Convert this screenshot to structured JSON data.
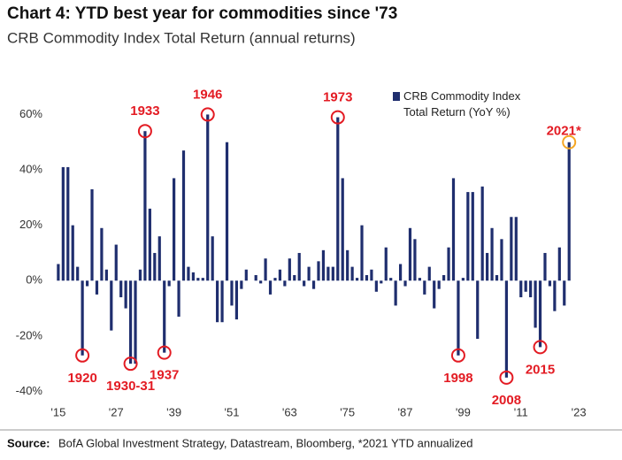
{
  "chart_data": {
    "type": "bar",
    "title": "Chart 4: YTD best year for commodities since '73",
    "subtitle": "CRB Commodity Index Total Return (annual returns)",
    "source_label": "Source:",
    "source": "BofA Global Investment Strategy, Datastream, Bloomberg, *2021 YTD annualized",
    "x": [
      1915,
      1916,
      1917,
      1918,
      1919,
      1920,
      1921,
      1922,
      1923,
      1924,
      1925,
      1926,
      1927,
      1928,
      1929,
      1930,
      1931,
      1932,
      1933,
      1934,
      1935,
      1936,
      1937,
      1938,
      1939,
      1940,
      1941,
      1942,
      1943,
      1944,
      1945,
      1946,
      1947,
      1948,
      1949,
      1950,
      1951,
      1952,
      1953,
      1954,
      1955,
      1956,
      1957,
      1958,
      1959,
      1960,
      1961,
      1962,
      1963,
      1964,
      1965,
      1966,
      1967,
      1968,
      1969,
      1970,
      1971,
      1972,
      1973,
      1974,
      1975,
      1976,
      1977,
      1978,
      1979,
      1980,
      1981,
      1982,
      1983,
      1984,
      1985,
      1986,
      1987,
      1988,
      1989,
      1990,
      1991,
      1992,
      1993,
      1994,
      1995,
      1996,
      1997,
      1998,
      1999,
      2000,
      2001,
      2002,
      2003,
      2004,
      2005,
      2006,
      2007,
      2008,
      2009,
      2010,
      2011,
      2012,
      2013,
      2014,
      2015,
      2016,
      2017,
      2018,
      2019,
      2020,
      2021
    ],
    "series": [
      {
        "name": "CRB Commodity Index Total Return (YoY %)",
        "color": "#1f2e6e",
        "values": [
          6,
          41,
          41,
          20,
          5,
          -27,
          -2,
          33,
          -5,
          19,
          4,
          -18,
          13,
          -6,
          -10,
          -30,
          -30,
          4,
          54,
          26,
          10,
          16,
          -26,
          -2,
          37,
          -13,
          47,
          5,
          3,
          1,
          1,
          60,
          16,
          -15,
          -15,
          50,
          -9,
          -14,
          -3,
          4,
          0,
          2,
          -1,
          8,
          -5,
          1,
          4,
          -2,
          8,
          2,
          10,
          -2,
          5,
          -3,
          7,
          11,
          5,
          5,
          59,
          37,
          11,
          5,
          1,
          20,
          2,
          4,
          -4,
          -1,
          12,
          1,
          -9,
          6,
          -2,
          19,
          15,
          1,
          -5,
          5,
          -10,
          -3,
          2,
          12,
          37,
          -27,
          1,
          32,
          32,
          -21,
          34,
          10,
          19,
          2,
          15,
          -35,
          23,
          23,
          -6,
          -4,
          -6,
          -17,
          -24,
          10,
          -2,
          -11,
          12,
          -9,
          50
        ]
      }
    ],
    "xlim": [
      1913,
      2025
    ],
    "xticks": [
      {
        "value": 1915,
        "label": "'15"
      },
      {
        "value": 1927,
        "label": "'27"
      },
      {
        "value": 1939,
        "label": "'39"
      },
      {
        "value": 1951,
        "label": "'51"
      },
      {
        "value": 1963,
        "label": "'63"
      },
      {
        "value": 1975,
        "label": "'75"
      },
      {
        "value": 1987,
        "label": "'87"
      },
      {
        "value": 1999,
        "label": "'99"
      },
      {
        "value": 2011,
        "label": "'11"
      },
      {
        "value": 2023,
        "label": "'23"
      }
    ],
    "ylim": [
      -44,
      71
    ],
    "yticks": [
      {
        "value": 60,
        "label": "60%"
      },
      {
        "value": 40,
        "label": "40%"
      },
      {
        "value": 20,
        "label": "20%"
      },
      {
        "value": 0,
        "label": "0%"
      },
      {
        "value": -20,
        "label": "-20%"
      },
      {
        "value": -40,
        "label": "-40%"
      }
    ],
    "annotations": [
      {
        "text": "1920",
        "at": 1920
      },
      {
        "text": "1930-31",
        "at": 1930
      },
      {
        "text": "1933",
        "at": 1933
      },
      {
        "text": "1937",
        "at": 1937
      },
      {
        "text": "1946",
        "at": 1946
      },
      {
        "text": "1973",
        "at": 1973
      },
      {
        "text": "1998",
        "at": 1998
      },
      {
        "text": "2008",
        "at": 2008
      },
      {
        "text": "2015",
        "at": 2015
      },
      {
        "text": "2021*",
        "at": 2021
      }
    ]
  }
}
